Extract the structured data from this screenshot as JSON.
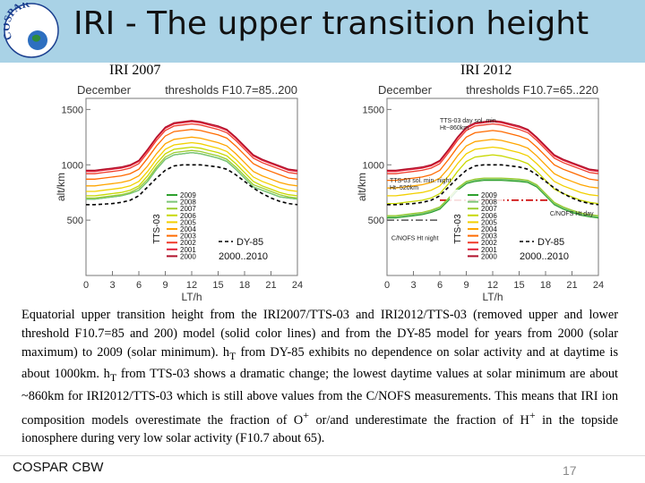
{
  "slide": {
    "title": "IRI - The upper transition height",
    "logo_text": "COSPAR",
    "footer_left": "COSPAR CBW",
    "page_number": "17"
  },
  "caption": {
    "p1": "Equatorial upper transition height from the IRI2007/TTS-03 and IRI2012/TTS-03 (removed upper and lower threshold F10.7=85 and 200) model (solid color lines) and from the DY-85 model for years from 2000 (solar maximum) to 2009 (solar minimum). h",
    "sub1": "T",
    "p2": " from DY-85 exhibits no dependence on solar activity and at daytime is about 1000km. h",
    "sub2": "T",
    "p3": " from TTS-03 shows a dramatic change; the lowest daytime values at solar minimum are about ~860km for IRI2012/TTS-03 which is still above values from the C/NOFS measurements. This means that IRI ion composition models overestimate the fraction of O",
    "sup1": "+",
    "p4": " or/and underestimate the fraction of H",
    "sup2": "+",
    "p5": " in the topside ionosphere during very low solar activity (F10.7 about 65)."
  },
  "chart_data": [
    {
      "type": "line",
      "panel_label": "IRI 2007",
      "title_left": "December",
      "title_right": "thresholds  F10.7=85..200",
      "xlabel": "LT/h",
      "ylabel": "alt/km",
      "xlim": [
        0,
        24
      ],
      "ylim": [
        0,
        1600
      ],
      "xticks": [
        0,
        3,
        6,
        9,
        12,
        15,
        18,
        21,
        24
      ],
      "yticks": [
        500,
        1000,
        1500
      ],
      "legend_label": "TTS-03",
      "legend_years": [
        "2009",
        "2008",
        "2007",
        "2006",
        "2005",
        "2004",
        "2003",
        "2002",
        "2001",
        "2000"
      ],
      "dy_legend": [
        "DY-85",
        "2000..2010"
      ],
      "x": [
        0,
        1,
        2,
        3,
        4,
        5,
        6,
        7,
        8,
        9,
        10,
        11,
        12,
        13,
        14,
        15,
        16,
        17,
        18,
        19,
        20,
        21,
        22,
        23,
        24
      ],
      "series": [
        {
          "name": "2009",
          "color": "#2ea02e",
          "values": [
            690,
            690,
            700,
            710,
            720,
            740,
            770,
            850,
            960,
            1050,
            1090,
            1100,
            1110,
            1100,
            1080,
            1060,
            1030,
            960,
            880,
            800,
            770,
            740,
            710,
            700,
            690
          ]
        },
        {
          "name": "2008",
          "color": "#7cc576",
          "values": [
            690,
            690,
            700,
            710,
            720,
            740,
            770,
            850,
            960,
            1050,
            1090,
            1100,
            1110,
            1100,
            1080,
            1060,
            1030,
            960,
            880,
            800,
            770,
            740,
            710,
            700,
            690
          ]
        },
        {
          "name": "2007",
          "color": "#9acd32",
          "values": [
            700,
            700,
            710,
            720,
            730,
            750,
            790,
            870,
            980,
            1070,
            1110,
            1120,
            1130,
            1120,
            1100,
            1080,
            1050,
            980,
            900,
            820,
            790,
            760,
            730,
            710,
            700
          ]
        },
        {
          "name": "2006",
          "color": "#c8d800",
          "values": [
            720,
            720,
            730,
            740,
            750,
            770,
            810,
            900,
            1010,
            1100,
            1140,
            1150,
            1160,
            1150,
            1130,
            1110,
            1080,
            1010,
            930,
            850,
            810,
            780,
            750,
            730,
            720
          ]
        },
        {
          "name": "2005",
          "color": "#f2d000",
          "values": [
            760,
            760,
            770,
            780,
            790,
            810,
            850,
            940,
            1050,
            1140,
            1180,
            1190,
            1200,
            1190,
            1170,
            1150,
            1120,
            1050,
            970,
            890,
            850,
            820,
            790,
            770,
            760
          ]
        },
        {
          "name": "2004",
          "color": "#ffa500",
          "values": [
            810,
            810,
            820,
            830,
            840,
            860,
            900,
            990,
            1100,
            1190,
            1230,
            1240,
            1250,
            1240,
            1220,
            1200,
            1170,
            1100,
            1020,
            940,
            900,
            870,
            840,
            820,
            810
          ]
        },
        {
          "name": "2003",
          "color": "#ff6a00",
          "values": [
            870,
            870,
            880,
            890,
            900,
            920,
            960,
            1060,
            1170,
            1260,
            1300,
            1310,
            1320,
            1310,
            1290,
            1270,
            1240,
            1170,
            1090,
            1010,
            970,
            940,
            910,
            880,
            870
          ]
        },
        {
          "name": "2002",
          "color": "#f03c2c",
          "values": [
            920,
            920,
            930,
            940,
            950,
            970,
            1010,
            1110,
            1220,
            1310,
            1350,
            1360,
            1370,
            1360,
            1340,
            1320,
            1290,
            1220,
            1140,
            1060,
            1020,
            990,
            960,
            930,
            920
          ]
        },
        {
          "name": "2001",
          "color": "#e0203a",
          "values": [
            940,
            940,
            950,
            960,
            970,
            990,
            1030,
            1130,
            1240,
            1330,
            1370,
            1380,
            1390,
            1380,
            1360,
            1340,
            1310,
            1240,
            1160,
            1080,
            1040,
            1010,
            980,
            950,
            940
          ]
        },
        {
          "name": "2000",
          "color": "#b0102a",
          "values": [
            950,
            950,
            960,
            970,
            980,
            1000,
            1040,
            1140,
            1250,
            1340,
            1380,
            1390,
            1400,
            1390,
            1370,
            1350,
            1320,
            1250,
            1170,
            1090,
            1050,
            1020,
            990,
            960,
            950
          ]
        },
        {
          "name": "DY-85",
          "color": "#000000",
          "dashed": true,
          "values": [
            640,
            640,
            645,
            650,
            660,
            680,
            720,
            800,
            880,
            950,
            990,
            1000,
            1000,
            1000,
            990,
            980,
            960,
            910,
            850,
            790,
            740,
            700,
            670,
            650,
            640
          ]
        }
      ]
    },
    {
      "type": "line",
      "panel_label": "IRI 2012",
      "title_left": "December",
      "title_right": "thresholds  F10.7=65..220",
      "xlabel": "LT/h",
      "ylabel": "alt/km",
      "xlim": [
        0,
        24
      ],
      "ylim": [
        0,
        1600
      ],
      "xticks": [
        0,
        3,
        6,
        9,
        12,
        15,
        18,
        21,
        24
      ],
      "yticks": [
        500,
        1000,
        1500
      ],
      "legend_label": "TTS-03",
      "legend_years": [
        "2009",
        "2008",
        "2007",
        "2006",
        "2005",
        "2004",
        "2003",
        "2002",
        "2001",
        "2000"
      ],
      "dy_legend": [
        "DY-85",
        "2000..2010"
      ],
      "annotations": [
        {
          "text_lines": [
            "TTS-03 day sol. min.",
            "Ht~860km"
          ],
          "x": 6,
          "y": 1380
        },
        {
          "text_lines": [
            "TTS-03 sol. min. night",
            "Ht~520km"
          ],
          "x": 0.3,
          "y": 840
        },
        {
          "text_lines": [
            "C/NOFS Ht day"
          ],
          "x": 18.5,
          "y": 540
        },
        {
          "text_lines": [
            "C/NOFS Ht night"
          ],
          "x": 0.5,
          "y": 320
        }
      ],
      "reference_lines": [
        {
          "name": "C/NOFS day",
          "color": "#cc0000",
          "x": [
            6,
            19
          ],
          "y": [
            680,
            680
          ]
        },
        {
          "name": "C/NOFS night",
          "color": "#555555",
          "x": [
            0,
            6
          ],
          "y": [
            500,
            500
          ]
        }
      ],
      "x": [
        0,
        1,
        2,
        3,
        4,
        5,
        6,
        7,
        8,
        9,
        10,
        11,
        12,
        13,
        14,
        15,
        16,
        17,
        18,
        19,
        20,
        21,
        22,
        23,
        24
      ],
      "series": [
        {
          "name": "2009",
          "color": "#2ea02e",
          "values": [
            520,
            520,
            530,
            540,
            550,
            570,
            600,
            680,
            770,
            830,
            850,
            860,
            860,
            860,
            855,
            850,
            840,
            800,
            720,
            640,
            600,
            570,
            545,
            530,
            520
          ]
        },
        {
          "name": "2008",
          "color": "#7cc576",
          "values": [
            530,
            530,
            540,
            550,
            560,
            580,
            610,
            690,
            780,
            840,
            860,
            870,
            870,
            870,
            865,
            860,
            850,
            810,
            730,
            650,
            610,
            580,
            555,
            540,
            530
          ]
        },
        {
          "name": "2007",
          "color": "#9acd32",
          "values": [
            540,
            540,
            550,
            560,
            570,
            590,
            620,
            700,
            790,
            850,
            870,
            880,
            880,
            880,
            875,
            870,
            860,
            820,
            740,
            660,
            620,
            590,
            565,
            550,
            540
          ]
        },
        {
          "name": "2006",
          "color": "#c8d800",
          "values": [
            650,
            650,
            660,
            670,
            680,
            700,
            740,
            830,
            940,
            1030,
            1070,
            1080,
            1090,
            1080,
            1060,
            1040,
            1010,
            940,
            860,
            780,
            740,
            710,
            680,
            660,
            650
          ]
        },
        {
          "name": "2005",
          "color": "#f2d000",
          "values": [
            720,
            720,
            730,
            740,
            750,
            770,
            810,
            900,
            1010,
            1100,
            1140,
            1150,
            1160,
            1150,
            1130,
            1110,
            1080,
            1010,
            930,
            850,
            810,
            780,
            750,
            730,
            720
          ]
        },
        {
          "name": "2004",
          "color": "#ffa500",
          "values": [
            790,
            790,
            800,
            810,
            820,
            840,
            880,
            970,
            1080,
            1170,
            1210,
            1220,
            1230,
            1220,
            1200,
            1180,
            1150,
            1080,
            1000,
            920,
            880,
            850,
            820,
            800,
            790
          ]
        },
        {
          "name": "2003",
          "color": "#ff6a00",
          "values": [
            860,
            860,
            870,
            880,
            890,
            910,
            950,
            1050,
            1160,
            1250,
            1290,
            1300,
            1310,
            1300,
            1280,
            1260,
            1230,
            1160,
            1080,
            1000,
            960,
            930,
            900,
            870,
            860
          ]
        },
        {
          "name": "2002",
          "color": "#f03c2c",
          "values": [
            920,
            920,
            930,
            940,
            950,
            970,
            1010,
            1110,
            1220,
            1310,
            1350,
            1360,
            1370,
            1360,
            1340,
            1320,
            1290,
            1220,
            1140,
            1060,
            1020,
            990,
            960,
            930,
            920
          ]
        },
        {
          "name": "2001",
          "color": "#e0203a",
          "values": [
            940,
            940,
            950,
            960,
            970,
            990,
            1030,
            1130,
            1240,
            1330,
            1370,
            1380,
            1390,
            1380,
            1360,
            1340,
            1310,
            1240,
            1160,
            1080,
            1040,
            1010,
            980,
            950,
            940
          ]
        },
        {
          "name": "2000",
          "color": "#b0102a",
          "values": [
            950,
            950,
            960,
            970,
            980,
            1000,
            1040,
            1140,
            1250,
            1340,
            1380,
            1390,
            1400,
            1390,
            1370,
            1350,
            1320,
            1250,
            1170,
            1090,
            1050,
            1020,
            990,
            960,
            950
          ]
        },
        {
          "name": "DY-85",
          "color": "#000000",
          "dashed": true,
          "values": [
            640,
            640,
            645,
            650,
            660,
            680,
            720,
            800,
            880,
            950,
            990,
            1000,
            1000,
            1000,
            990,
            980,
            960,
            910,
            850,
            790,
            740,
            700,
            670,
            650,
            640
          ]
        }
      ]
    }
  ]
}
